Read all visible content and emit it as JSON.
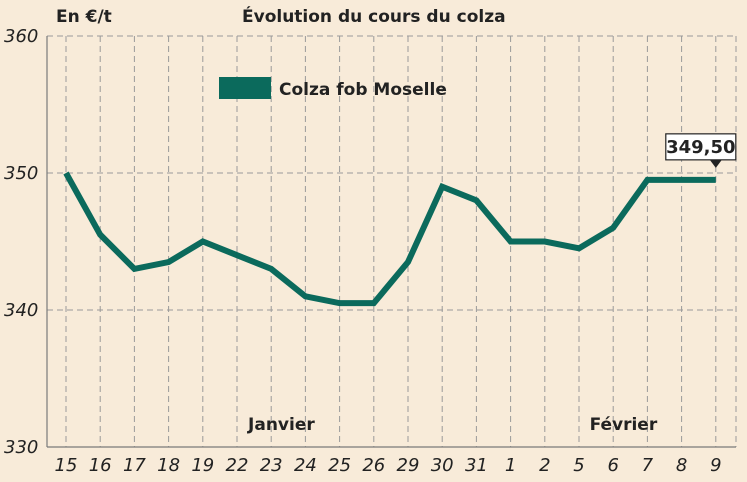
{
  "chart_data": {
    "type": "line",
    "title": "Évolution du cours du colza",
    "unit_label": "En €/t",
    "xlabel": "",
    "ylabel": "",
    "categories": [
      "15",
      "16",
      "17",
      "18",
      "19",
      "22",
      "23",
      "24",
      "25",
      "26",
      "29",
      "30",
      "31",
      "1",
      "2",
      "5",
      "6",
      "7",
      "8",
      "9"
    ],
    "series": [
      {
        "name": "Colza fob Moselle",
        "color": "#0b6a5c",
        "values": [
          350,
          345.5,
          343,
          343.5,
          345,
          344,
          343,
          341,
          340.5,
          340.5,
          343.5,
          349,
          348,
          345,
          345,
          344.5,
          346,
          349.5,
          349.5,
          349.5
        ]
      }
    ],
    "ylim": [
      330,
      360
    ],
    "yticks": [
      330,
      340,
      350,
      360
    ],
    "month_labels": [
      {
        "text": "Janvier",
        "category": "24"
      },
      {
        "text": "Février",
        "category": "7"
      }
    ],
    "annotation": {
      "text": "349,50",
      "category": "9"
    },
    "legend_position": "top-center",
    "grid": true,
    "colors": {
      "background": "#f8ebd9",
      "grid": "#9a9a9a",
      "line": "#0b6a5c"
    }
  }
}
